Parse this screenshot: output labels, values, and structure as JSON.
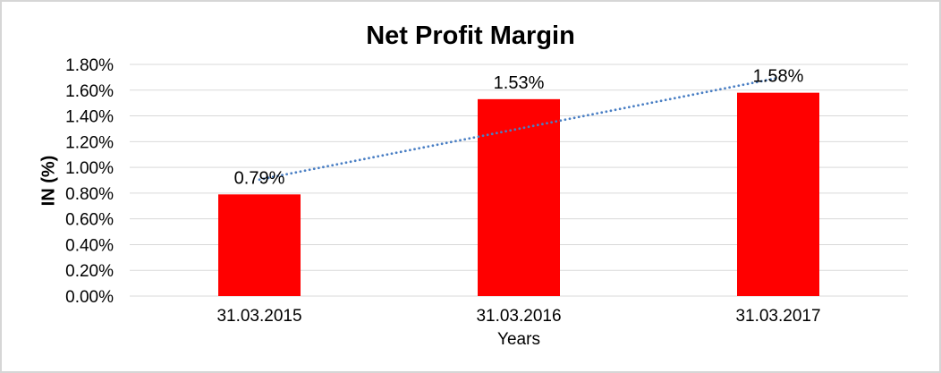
{
  "chart_data": {
    "type": "bar",
    "title": "Net Profit Margin",
    "xlabel": "Years",
    "ylabel": "IN (%)",
    "categories": [
      "31.03.2015",
      "31.03.2016",
      "31.03.2017"
    ],
    "values": [
      0.79,
      1.53,
      1.58
    ],
    "data_labels": [
      "0.79%",
      "1.53%",
      "1.58%"
    ],
    "y_ticks": [
      "0.00%",
      "0.20%",
      "0.40%",
      "0.60%",
      "0.80%",
      "1.00%",
      "1.20%",
      "1.40%",
      "1.60%",
      "1.80%"
    ],
    "ylim": [
      0,
      1.8
    ],
    "grid": true,
    "legend": "none",
    "bar_color": "#ff0000",
    "trendline": {
      "type": "linear",
      "style": "dotted",
      "color": "#4a7fc4",
      "start_value": 0.905,
      "end_value": 1.695
    }
  },
  "colors": {
    "background": "#ffffff",
    "frame_border": "#d6d6d6",
    "gridline": "#d9d9d9",
    "text": "#000000"
  }
}
